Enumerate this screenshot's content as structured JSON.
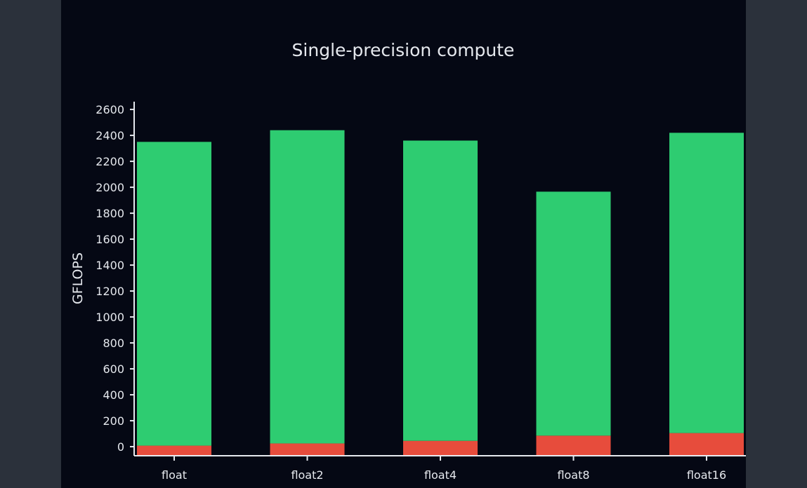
{
  "chart_data": {
    "type": "bar",
    "stacked": true,
    "title": "Single-precision compute",
    "xlabel": "",
    "ylabel": "GFLOPS",
    "categories": [
      "float",
      "float2",
      "float4",
      "float8",
      "float16"
    ],
    "series": [
      {
        "color": "#e74c3c",
        "values": [
          8,
          25,
          45,
          85,
          105
        ]
      },
      {
        "color": "#2ecc71",
        "values": [
          2342,
          2415,
          2315,
          1881,
          2315
        ]
      }
    ],
    "ylim": [
      -70,
      2660
    ],
    "yticks": [
      0,
      200,
      400,
      600,
      800,
      1000,
      1200,
      1400,
      1600,
      1800,
      2000,
      2200,
      2400,
      2600
    ],
    "grid": false,
    "legend": "none"
  }
}
